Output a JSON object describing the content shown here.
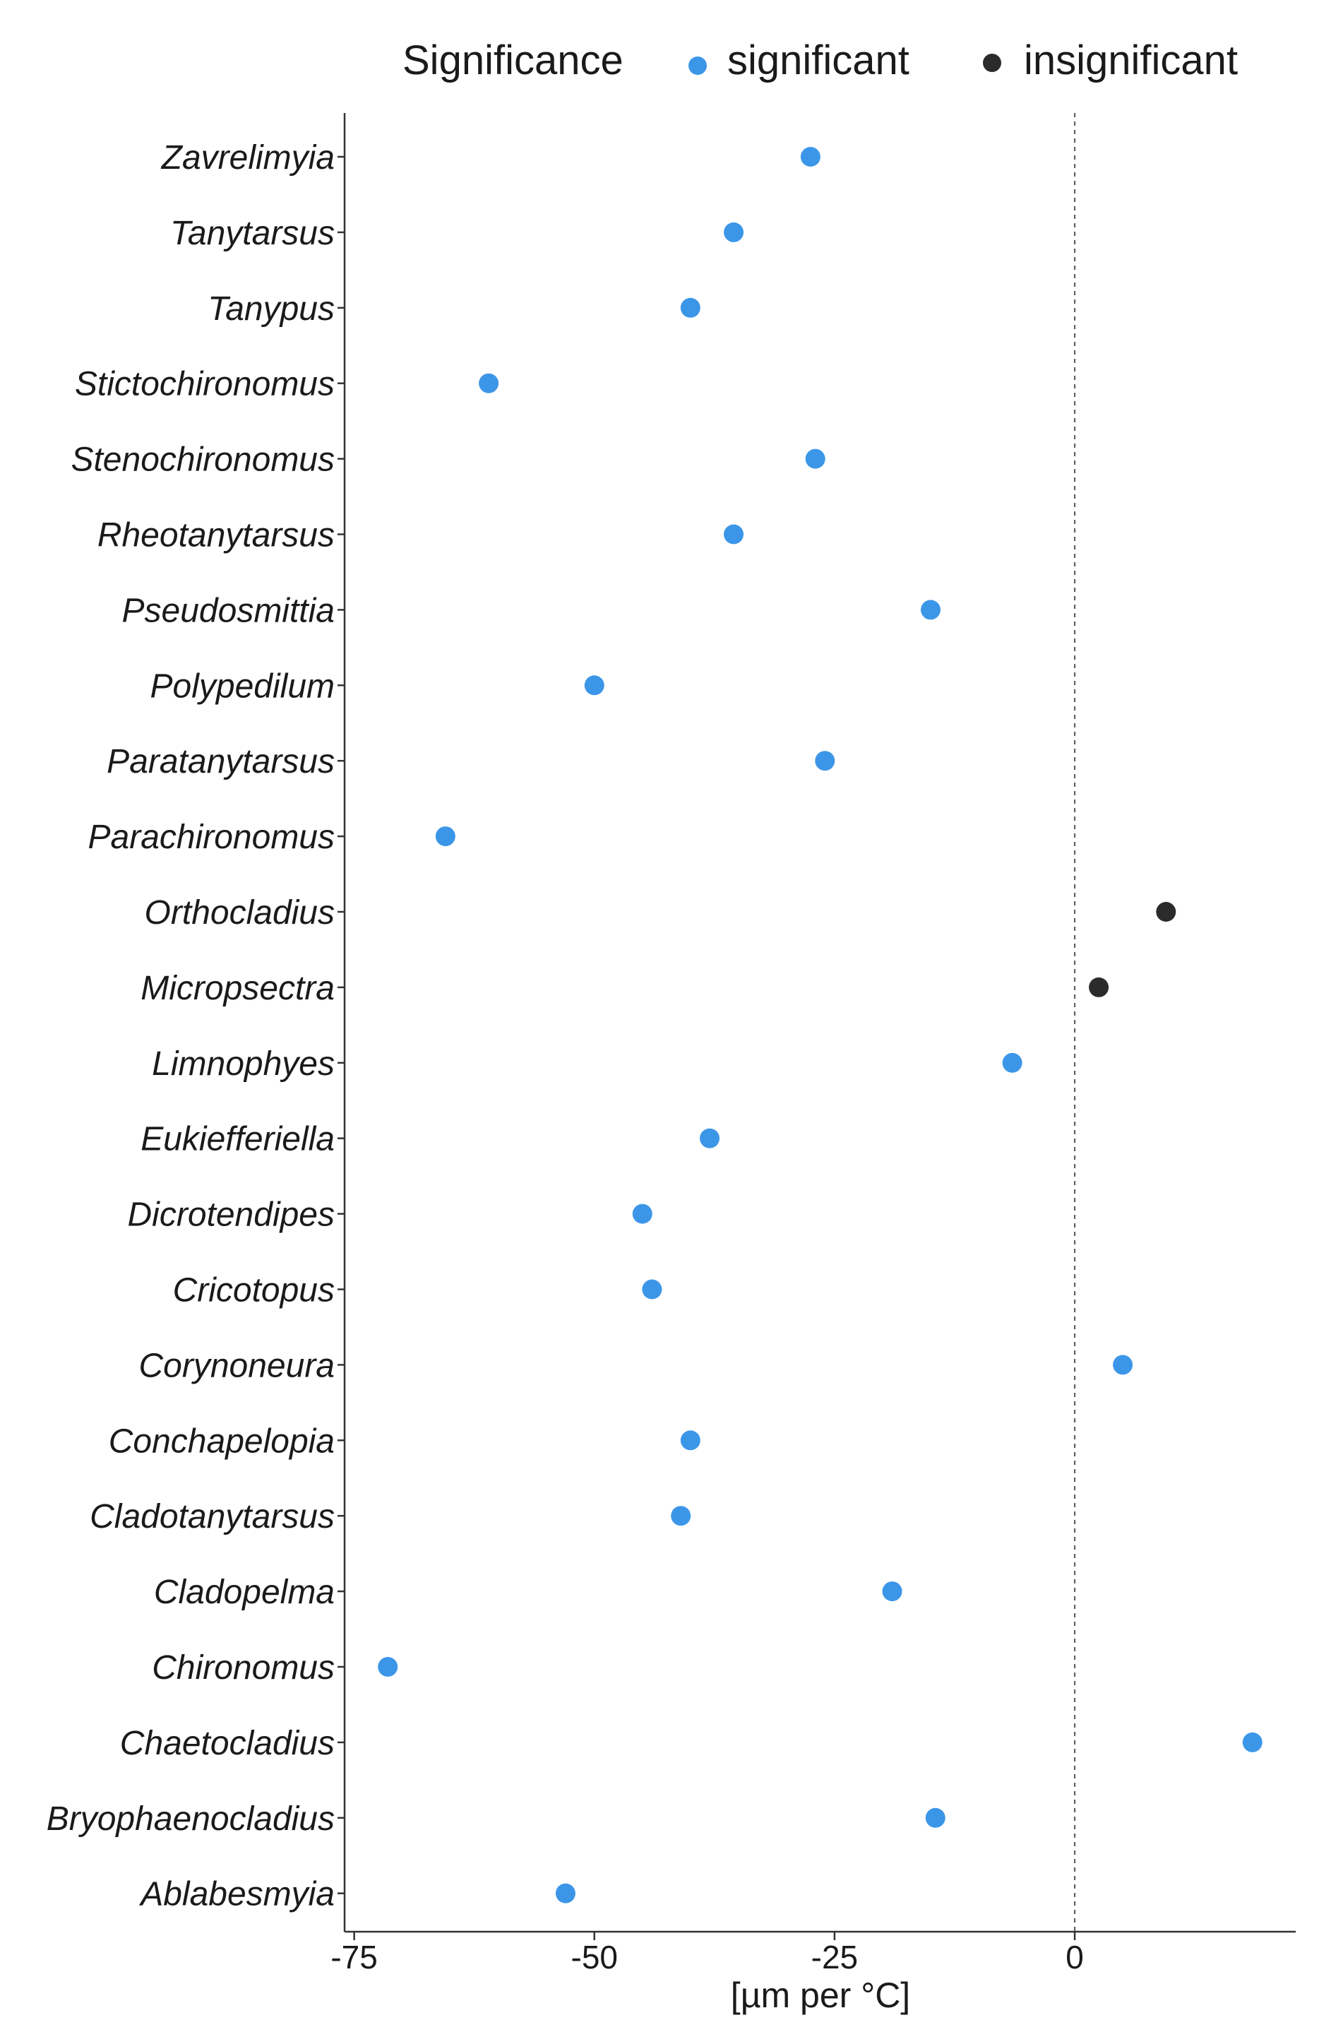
{
  "colors": {
    "significant": "#3c96e8",
    "insignificant": "#2b2b2b",
    "axis": "#333333",
    "refline": "#555555"
  },
  "legend": {
    "title": "Significance",
    "items": [
      {
        "key": "significant",
        "label": "significant"
      },
      {
        "key": "insignificant",
        "label": "insignificant"
      }
    ]
  },
  "chart_data": {
    "type": "scatter",
    "title": "",
    "xlabel": "[µm per °C]",
    "ylabel": "",
    "xlim": [
      -76,
      23
    ],
    "xticks": [
      -75,
      -50,
      -25,
      0
    ],
    "xtick_labels": [
      "-75",
      "-50",
      "-25",
      "0"
    ],
    "reference_line_x": 0,
    "grid": false,
    "legend_position": "top-right",
    "categories": [
      "Zavrelimyia",
      "Tanytarsus",
      "Tanypus",
      "Stictochironomus",
      "Stenochironomus",
      "Rheotanytarsus",
      "Pseudosmittia",
      "Polypedilum",
      "Paratanytarsus",
      "Parachironomus",
      "Orthocladius",
      "Micropsectra",
      "Limnophyes",
      "Eukiefferiella",
      "Dicrotendipes",
      "Cricotopus",
      "Corynoneura",
      "Conchapelopia",
      "Cladotanytarsus",
      "Cladopelma",
      "Chironomus",
      "Chaetocladius",
      "Bryophaenocladius",
      "Ablabesmyia"
    ],
    "values": [
      -27.5,
      -35.5,
      -40,
      -61,
      -27,
      -35.5,
      -15,
      -50,
      -26,
      -65.5,
      9.5,
      2.5,
      -6.5,
      -38,
      -45,
      -44,
      5,
      -40,
      -41,
      -19,
      -71.5,
      18.5,
      -14.5,
      -53
    ],
    "significance": [
      "significant",
      "significant",
      "significant",
      "significant",
      "significant",
      "significant",
      "significant",
      "significant",
      "significant",
      "significant",
      "insignificant",
      "insignificant",
      "significant",
      "significant",
      "significant",
      "significant",
      "significant",
      "significant",
      "significant",
      "significant",
      "significant",
      "significant",
      "significant",
      "significant"
    ]
  }
}
